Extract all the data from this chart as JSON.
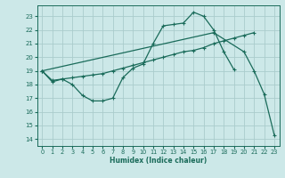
{
  "xlabel": "Humidex (Indice chaleur)",
  "bg_color": "#cce8e8",
  "grid_color": "#aacccc",
  "line_color": "#1a6b5a",
  "xlim": [
    -0.5,
    23.5
  ],
  "ylim": [
    13.5,
    23.8
  ],
  "yticks": [
    14,
    15,
    16,
    17,
    18,
    19,
    20,
    21,
    22,
    23
  ],
  "xticks": [
    0,
    1,
    2,
    3,
    4,
    5,
    6,
    7,
    8,
    9,
    10,
    11,
    12,
    13,
    14,
    15,
    16,
    17,
    18,
    19,
    20,
    21,
    22,
    23
  ],
  "curve1_x": [
    0,
    1,
    2,
    3,
    4,
    5,
    6,
    7,
    8,
    9,
    10,
    11,
    12,
    13,
    14,
    15,
    16,
    17,
    18,
    19
  ],
  "curve1_y": [
    19.0,
    18.2,
    18.4,
    18.0,
    17.2,
    16.8,
    16.8,
    17.0,
    18.5,
    19.2,
    19.5,
    21.0,
    22.3,
    22.4,
    22.5,
    23.3,
    23.0,
    22.0,
    20.4,
    19.1
  ],
  "curve2_x": [
    0,
    1,
    2,
    3,
    4,
    5,
    6,
    7,
    8,
    9,
    10,
    11,
    12,
    13,
    14,
    15,
    16,
    17,
    18,
    19,
    20,
    21
  ],
  "curve2_y": [
    19.0,
    18.3,
    18.4,
    18.5,
    18.6,
    18.7,
    18.8,
    19.0,
    19.2,
    19.4,
    19.6,
    19.8,
    20.0,
    20.2,
    20.4,
    20.5,
    20.7,
    21.0,
    21.2,
    21.4,
    21.6,
    21.8
  ],
  "curve3_x": [
    0,
    17,
    20,
    21,
    22,
    23
  ],
  "curve3_y": [
    19.0,
    21.8,
    20.4,
    19.0,
    17.3,
    14.3
  ]
}
